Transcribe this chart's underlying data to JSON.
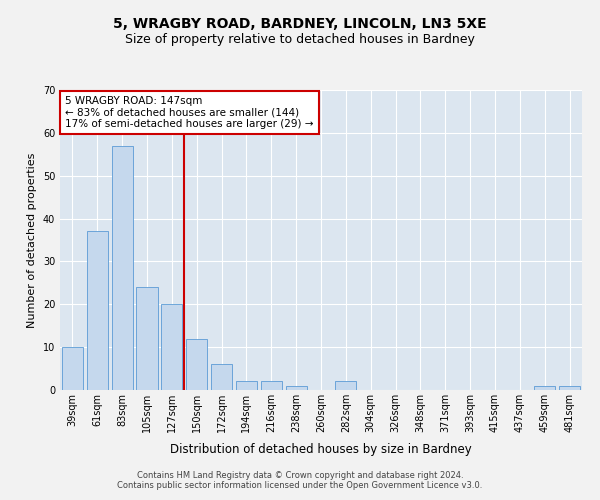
{
  "title": "5, WRAGBY ROAD, BARDNEY, LINCOLN, LN3 5XE",
  "subtitle": "Size of property relative to detached houses in Bardney",
  "xlabel": "Distribution of detached houses by size in Bardney",
  "ylabel": "Number of detached properties",
  "categories": [
    "39sqm",
    "61sqm",
    "83sqm",
    "105sqm",
    "127sqm",
    "150sqm",
    "172sqm",
    "194sqm",
    "216sqm",
    "238sqm",
    "260sqm",
    "282sqm",
    "304sqm",
    "326sqm",
    "348sqm",
    "371sqm",
    "393sqm",
    "415sqm",
    "437sqm",
    "459sqm",
    "481sqm"
  ],
  "values": [
    10,
    37,
    57,
    24,
    20,
    12,
    6,
    2,
    2,
    1,
    0,
    2,
    0,
    0,
    0,
    0,
    0,
    0,
    0,
    1,
    1
  ],
  "bar_color": "#c5d8ed",
  "bar_edge_color": "#5b9bd5",
  "annotation_text": "5 WRAGBY ROAD: 147sqm\n← 83% of detached houses are smaller (144)\n17% of semi-detached houses are larger (29) →",
  "annotation_box_facecolor": "#ffffff",
  "annotation_box_edgecolor": "#cc0000",
  "vline_color": "#cc0000",
  "ylim": [
    0,
    70
  ],
  "yticks": [
    0,
    10,
    20,
    30,
    40,
    50,
    60,
    70
  ],
  "footnote": "Contains HM Land Registry data © Crown copyright and database right 2024.\nContains public sector information licensed under the Open Government Licence v3.0.",
  "bg_color": "#dce6f0",
  "grid_color": "#ffffff",
  "fig_bg_color": "#f2f2f2",
  "title_fontsize": 10,
  "subtitle_fontsize": 9,
  "tick_fontsize": 7,
  "ylabel_fontsize": 8,
  "xlabel_fontsize": 8.5,
  "footnote_fontsize": 6,
  "annotation_fontsize": 7.5,
  "vline_x": 4.5
}
